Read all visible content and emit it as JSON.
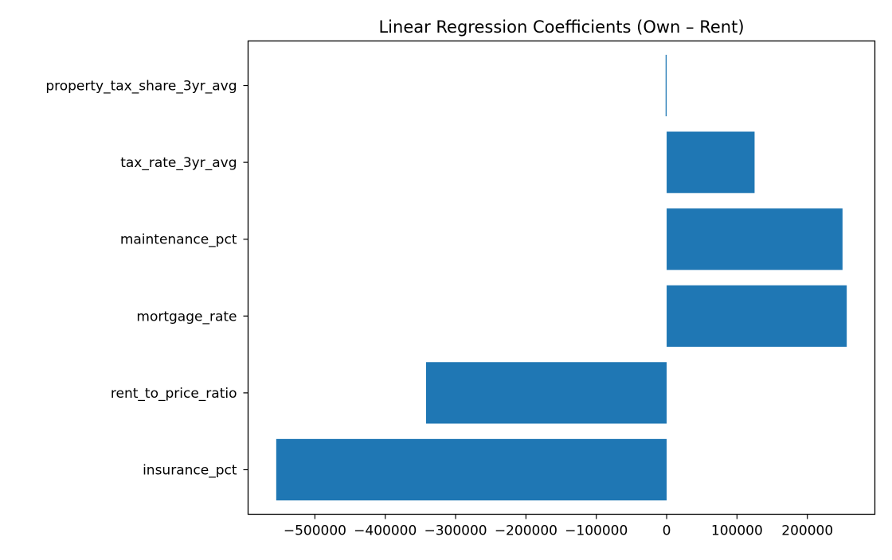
{
  "chart_data": {
    "type": "bar",
    "orientation": "horizontal",
    "title": "Linear Regression Coefficients (Own – Rent)",
    "xlabel": "",
    "ylabel": "",
    "categories": [
      "insurance_pct",
      "rent_to_price_ratio",
      "mortgage_rate",
      "maintenance_pct",
      "tax_rate_3yr_avg",
      "property_tax_share_3yr_avg"
    ],
    "values": [
      -555000,
      -342000,
      256000,
      250000,
      125000,
      -1500
    ],
    "x_ticks": [
      -500000,
      -400000,
      -300000,
      -200000,
      -100000,
      0,
      100000,
      200000
    ],
    "x_tick_labels": [
      "−500000",
      "−400000",
      "−300000",
      "−200000",
      "−100000",
      "0",
      "100000",
      "200000"
    ],
    "xlim": [
      -595000,
      296000
    ],
    "grid": false,
    "legend": "none",
    "colors": {
      "bar": "#1f77b4",
      "axes": "#000000",
      "background": "#ffffff"
    }
  }
}
